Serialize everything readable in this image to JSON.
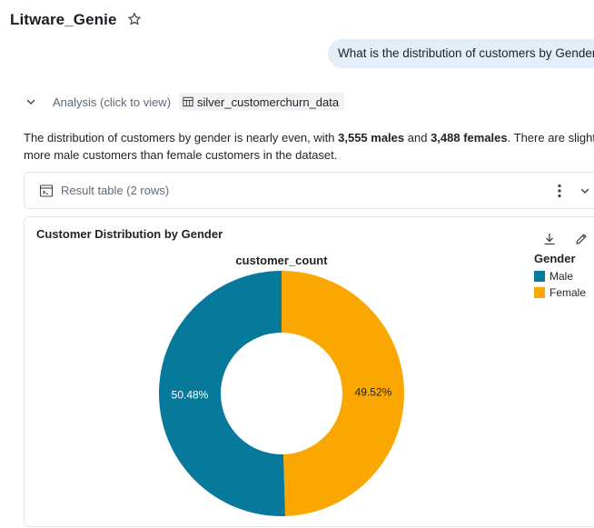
{
  "app": {
    "title": "Litware_Genie",
    "star_icon": "star-outline-icon"
  },
  "user_message": "What is the distribution of customers by Gender?",
  "analysis": {
    "label": "Analysis (click to view)",
    "table_name": "silver_customerchurn_data",
    "chevron_icon": "chevron-down-icon",
    "table_icon": "table-icon"
  },
  "summary": {
    "part1": "The distribution of customers by gender is nearly even, with ",
    "males": "3,555 males",
    "part2": " and ",
    "females": "3,488 females",
    "part3": ". There are slightly",
    "line2": "more male customers than female customers in the dataset."
  },
  "result_table": {
    "label": "Result table (2 rows)",
    "icon": "terminal-table-icon"
  },
  "chart": {
    "title": "Customer Distribution by Gender",
    "colors": {
      "Male": "#07799b",
      "Female": "#fba702"
    }
  },
  "chart_data": {
    "type": "pie",
    "title": "customer_count",
    "categories": [
      "Male",
      "Female"
    ],
    "values": [
      3555,
      3488
    ],
    "percent_labels": [
      "50.48%",
      "49.52%"
    ],
    "legend_title": "Gender",
    "legend_position": "top-right",
    "donut": true
  }
}
